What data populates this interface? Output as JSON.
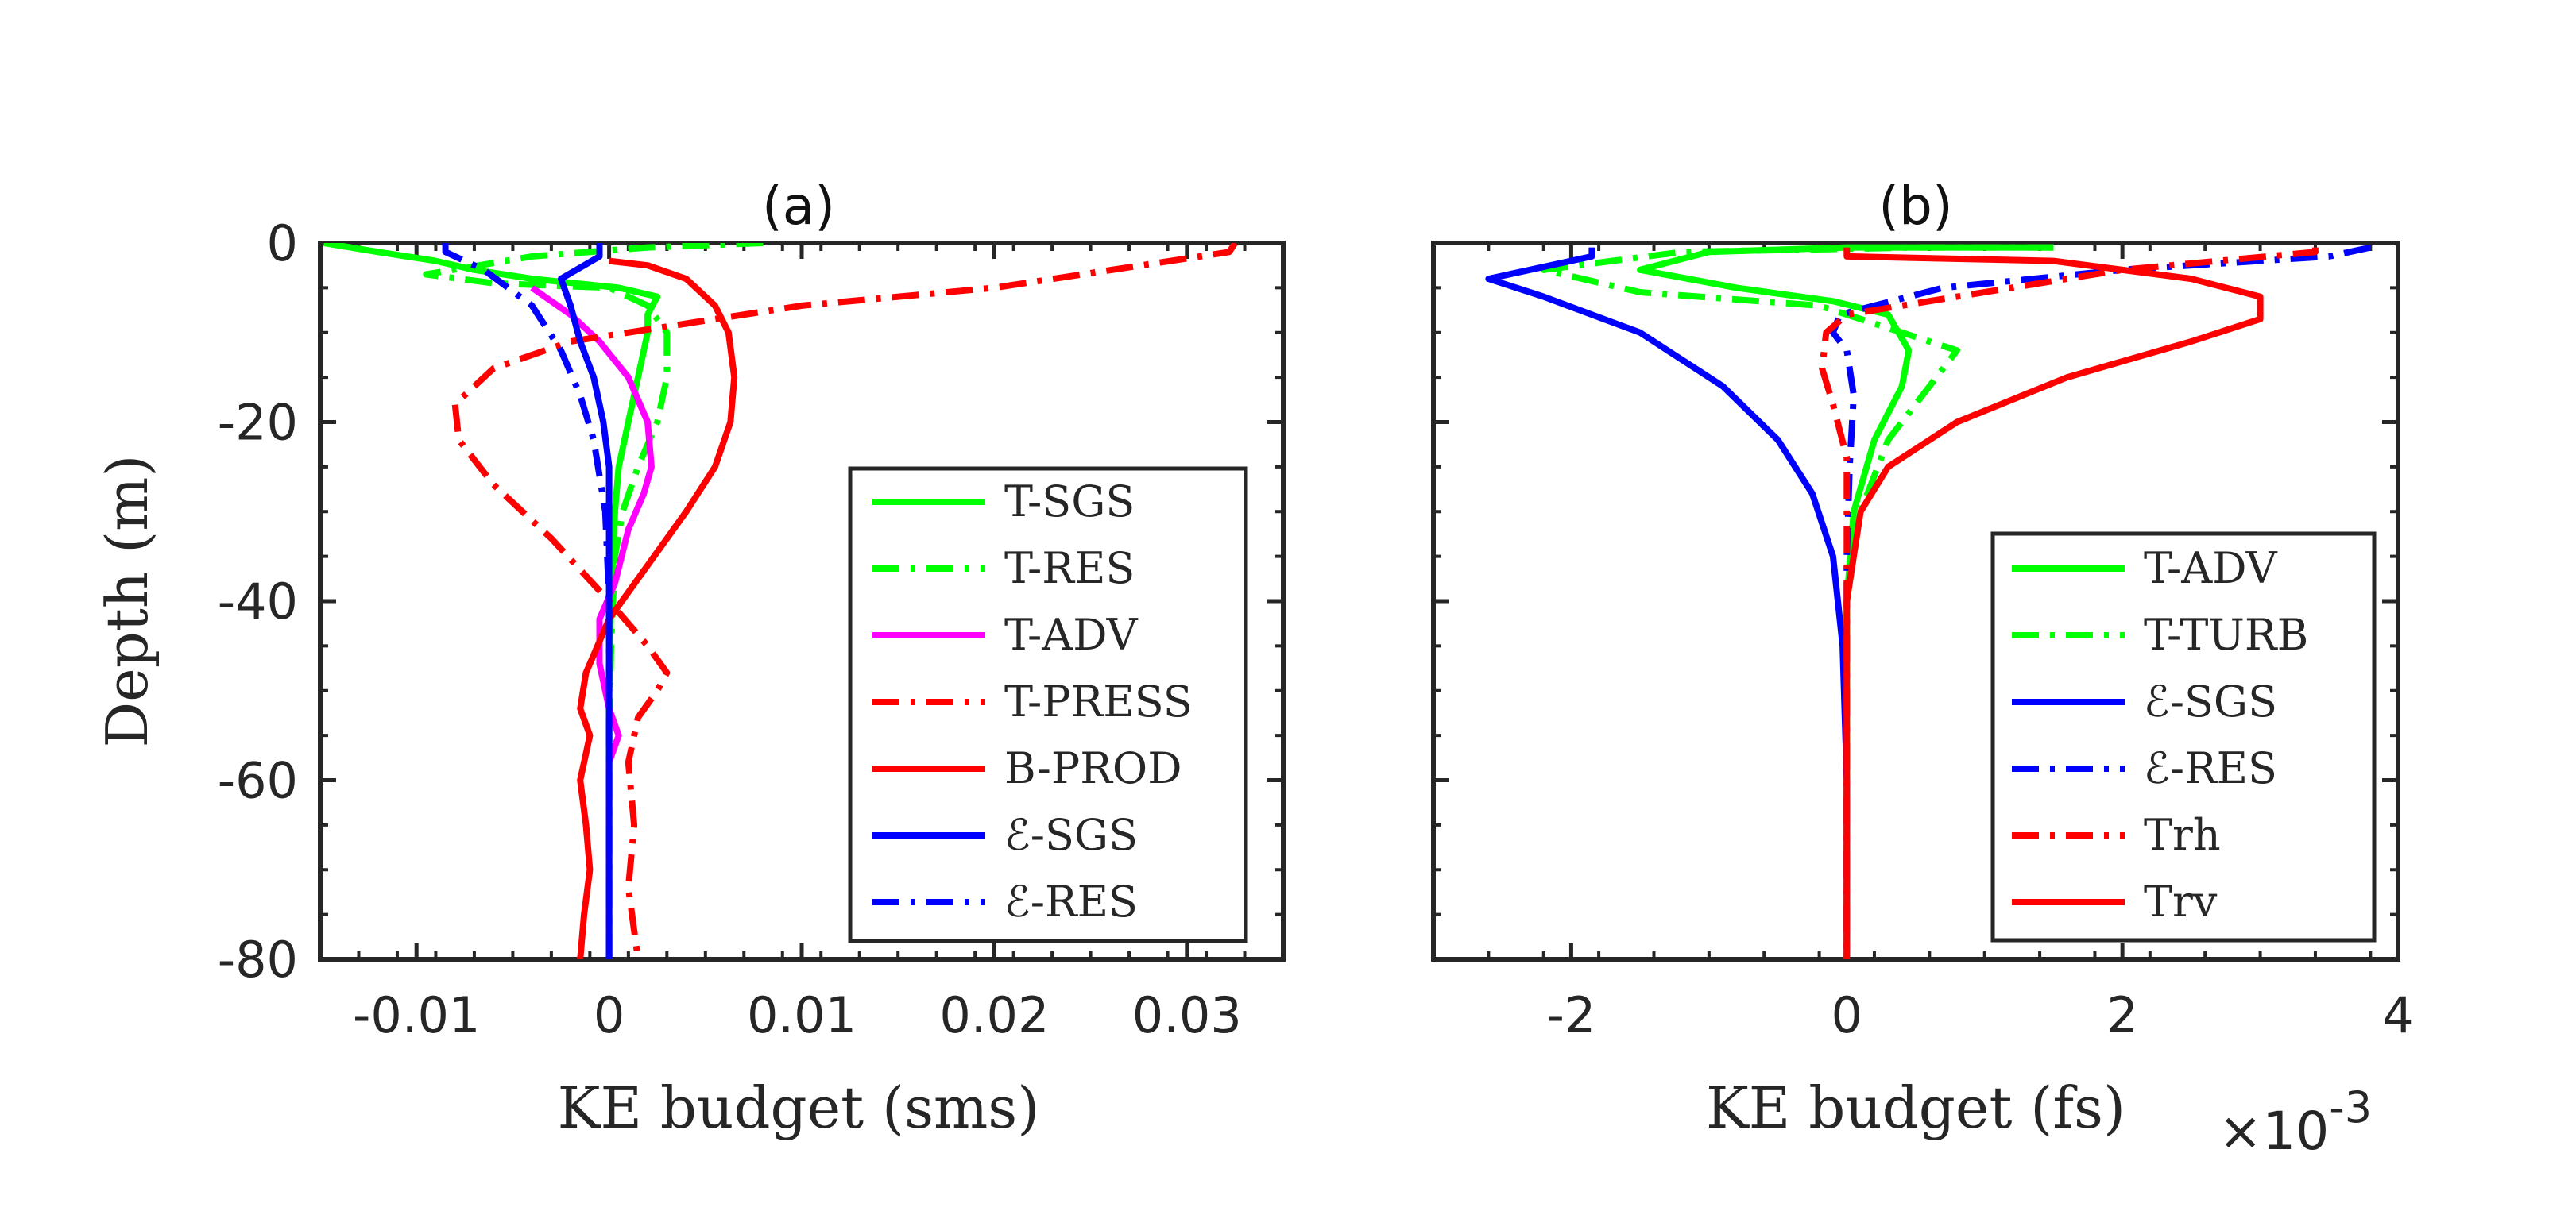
{
  "chart_data": [
    {
      "type": "line",
      "panel": "a",
      "title": "(a)",
      "xlabel": "KE budget (sms)",
      "ylabel": "Depth (m)",
      "xlim": [
        -0.015,
        0.035
      ],
      "ylim": [
        -80,
        0
      ],
      "xticks": [
        -0.01,
        0,
        0.01,
        0.02,
        0.03
      ],
      "xtick_labels": [
        "-0.01",
        "0",
        "0.01",
        "0.02",
        "0.03"
      ],
      "yticks": [
        0,
        -20,
        -40,
        -60,
        -80
      ],
      "ytick_labels": [
        "0",
        "-20",
        "-40",
        "-60",
        "-80"
      ],
      "legend_position": "lower-right",
      "series": [
        {
          "name": "T-SGS",
          "color": "#00ff00",
          "dash": "solid",
          "points": [
            [
              -0.0148,
              0
            ],
            [
              -0.012,
              -1
            ],
            [
              -0.009,
              -2
            ],
            [
              -0.007,
              -3
            ],
            [
              -0.004,
              -4
            ],
            [
              0.0005,
              -5
            ],
            [
              0.0025,
              -6
            ],
            [
              0.002,
              -8
            ],
            [
              0.002,
              -10
            ],
            [
              0.0015,
              -15
            ],
            [
              0.001,
              -20
            ],
            [
              0.0005,
              -25
            ],
            [
              0.0003,
              -30
            ],
            [
              0.0001,
              -40
            ],
            [
              0,
              -50
            ],
            [
              0,
              -80
            ]
          ]
        },
        {
          "name": "T-RES",
          "color": "#00ff00",
          "dash": "dashdot",
          "points": [
            [
              0.008,
              0
            ],
            [
              0.002,
              -0.5
            ],
            [
              -0.004,
              -1.5
            ],
            [
              -0.0095,
              -3.5
            ],
            [
              -0.006,
              -4.5
            ],
            [
              0,
              -5
            ],
            [
              0.002,
              -7
            ],
            [
              0.003,
              -10
            ],
            [
              0.003,
              -15
            ],
            [
              0.0025,
              -20
            ],
            [
              0.0015,
              -25
            ],
            [
              0.0007,
              -30
            ],
            [
              0.0003,
              -35
            ],
            [
              0.0001,
              -45
            ],
            [
              0,
              -55
            ],
            [
              0,
              -80
            ]
          ]
        },
        {
          "name": "T-ADV",
          "color": "#ff00ff",
          "dash": "solid",
          "points": [
            [
              -0.004,
              -5
            ],
            [
              -0.002,
              -8
            ],
            [
              -0.0005,
              -11
            ],
            [
              0.001,
              -15
            ],
            [
              0.002,
              -20
            ],
            [
              0.0022,
              -25
            ],
            [
              0.0018,
              -28
            ],
            [
              0.001,
              -32
            ],
            [
              0.0003,
              -38
            ],
            [
              -0.0005,
              -42
            ],
            [
              -0.0005,
              -47
            ],
            [
              0,
              -52
            ],
            [
              0.0005,
              -55
            ],
            [
              0,
              -58
            ],
            [
              0,
              -80
            ]
          ]
        },
        {
          "name": "T-PRESS",
          "color": "#ff0000",
          "dash": "dashdot",
          "points": [
            [
              0.0325,
              0
            ],
            [
              0.0322,
              -1
            ],
            [
              0.02,
              -5
            ],
            [
              0.01,
              -7
            ],
            [
              0.004,
              -9
            ],
            [
              -0.002,
              -11
            ],
            [
              -0.006,
              -14
            ],
            [
              -0.008,
              -18
            ],
            [
              -0.0078,
              -22
            ],
            [
              -0.006,
              -27
            ],
            [
              -0.003,
              -33
            ],
            [
              0,
              -40
            ],
            [
              0.002,
              -45
            ],
            [
              0.003,
              -48
            ],
            [
              0.0025,
              -50
            ],
            [
              0.0015,
              -53
            ],
            [
              0.001,
              -58
            ],
            [
              0.0013,
              -65
            ],
            [
              0.001,
              -72
            ],
            [
              0.0015,
              -80
            ]
          ]
        },
        {
          "name": "B-PROD",
          "color": "#ff0000",
          "dash": "solid",
          "points": [
            [
              0,
              -2
            ],
            [
              0.002,
              -2.5
            ],
            [
              0.004,
              -4
            ],
            [
              0.0055,
              -7
            ],
            [
              0.0062,
              -10
            ],
            [
              0.0065,
              -15
            ],
            [
              0.0063,
              -20
            ],
            [
              0.0055,
              -25
            ],
            [
              0.004,
              -30
            ],
            [
              0.002,
              -36
            ],
            [
              0,
              -42
            ],
            [
              -0.0012,
              -48
            ],
            [
              -0.0015,
              -52
            ],
            [
              -0.001,
              -55
            ],
            [
              -0.0015,
              -60
            ],
            [
              -0.0012,
              -65
            ],
            [
              -0.001,
              -70
            ],
            [
              -0.0013,
              -75
            ],
            [
              -0.0015,
              -80
            ]
          ]
        },
        {
          "name": "ℰ-SGS",
          "color": "#0000ff",
          "dash": "solid",
          "points": [
            [
              -0.0005,
              0
            ],
            [
              -0.0005,
              -1.5
            ],
            [
              -0.0025,
              -4
            ],
            [
              -0.002,
              -7
            ],
            [
              -0.0015,
              -11
            ],
            [
              -0.0008,
              -15
            ],
            [
              -0.0003,
              -20
            ],
            [
              0,
              -25
            ],
            [
              0,
              -80
            ]
          ]
        },
        {
          "name": "ℰ-RES",
          "color": "#0000ff",
          "dash": "dashdot",
          "points": [
            [
              -0.0085,
              0
            ],
            [
              -0.0085,
              -1
            ],
            [
              -0.0065,
              -3
            ],
            [
              -0.004,
              -7
            ],
            [
              -0.0025,
              -12
            ],
            [
              -0.0015,
              -17
            ],
            [
              -0.0008,
              -22
            ],
            [
              -0.0002,
              -30
            ],
            [
              0,
              -40
            ],
            [
              0,
              -80
            ]
          ]
        }
      ]
    },
    {
      "type": "line",
      "panel": "b",
      "title": "(b)",
      "xlabel": "KE budget (fs)",
      "x_exponent_label": "×10",
      "x_exponent_power": "-3",
      "xlim": [
        -3,
        4
      ],
      "ylim": [
        -80,
        0
      ],
      "xticks": [
        -2,
        0,
        2,
        4
      ],
      "xtick_labels": [
        "-2",
        "0",
        "2",
        "4"
      ],
      "legend_position": "lower-right",
      "series": [
        {
          "name": "T-ADV",
          "color": "#00ff00",
          "dash": "solid",
          "points": [
            [
              1.5,
              -0.5
            ],
            [
              0,
              -0.5
            ],
            [
              -1,
              -1
            ],
            [
              -1.5,
              -3
            ],
            [
              -0.8,
              -5
            ],
            [
              -0.1,
              -6.5
            ],
            [
              0.3,
              -8
            ],
            [
              0.45,
              -12
            ],
            [
              0.4,
              -16
            ],
            [
              0.2,
              -22
            ],
            [
              0.05,
              -30
            ],
            [
              0,
              -40
            ],
            [
              0,
              -80
            ]
          ]
        },
        {
          "name": "T-TURB",
          "color": "#00ff00",
          "dash": "dashdot",
          "points": [
            [
              1.5,
              -0.5
            ],
            [
              0.5,
              -0.5
            ],
            [
              -1.2,
              -1
            ],
            [
              -2.2,
              -3
            ],
            [
              -1.5,
              -5.5
            ],
            [
              -0.2,
              -7
            ],
            [
              0.8,
              -12
            ],
            [
              0.6,
              -16
            ],
            [
              0.3,
              -22
            ],
            [
              0.1,
              -30
            ],
            [
              0,
              -40
            ],
            [
              0,
              -80
            ]
          ]
        },
        {
          "name": "ℰ-SGS",
          "color": "#0000ff",
          "dash": "solid",
          "points": [
            [
              -1.85,
              -0.5
            ],
            [
              -1.85,
              -1.5
            ],
            [
              -2.6,
              -4
            ],
            [
              -2.2,
              -6
            ],
            [
              -1.5,
              -10
            ],
            [
              -0.9,
              -16
            ],
            [
              -0.5,
              -22
            ],
            [
              -0.25,
              -28
            ],
            [
              -0.1,
              -35
            ],
            [
              -0.03,
              -45
            ],
            [
              0,
              -60
            ],
            [
              0,
              -80
            ]
          ]
        },
        {
          "name": "ℰ-RES",
          "color": "#0000ff",
          "dash": "dashdot",
          "points": [
            [
              3.8,
              -0.5
            ],
            [
              3.5,
              -1.5
            ],
            [
              2,
              -3
            ],
            [
              0.7,
              -5
            ],
            [
              0.2,
              -7
            ],
            [
              -0.05,
              -8
            ],
            [
              -0.1,
              -10
            ],
            [
              0,
              -12
            ],
            [
              0.05,
              -17
            ],
            [
              0.02,
              -25
            ],
            [
              0,
              -35
            ],
            [
              0,
              -80
            ]
          ]
        },
        {
          "name": "Trh",
          "color": "#ff0000",
          "dash": "dashdot",
          "points": [
            [
              3.4,
              -0.5
            ],
            [
              3.4,
              -1
            ],
            [
              2,
              -3
            ],
            [
              0.8,
              -6
            ],
            [
              0,
              -8
            ],
            [
              -0.15,
              -10
            ],
            [
              -0.18,
              -14
            ],
            [
              -0.1,
              -18
            ],
            [
              0,
              -24
            ],
            [
              0,
              -80
            ]
          ]
        },
        {
          "name": "Trv",
          "color": "#ff0000",
          "dash": "solid",
          "points": [
            [
              0,
              -0.5
            ],
            [
              0,
              -1.5
            ],
            [
              1.5,
              -2
            ],
            [
              2.5,
              -4
            ],
            [
              3,
              -6
            ],
            [
              3,
              -8.5
            ],
            [
              2.5,
              -11
            ],
            [
              1.6,
              -15
            ],
            [
              0.8,
              -20
            ],
            [
              0.3,
              -25
            ],
            [
              0.1,
              -30
            ],
            [
              0,
              -40
            ],
            [
              0,
              -80
            ]
          ]
        }
      ]
    }
  ]
}
